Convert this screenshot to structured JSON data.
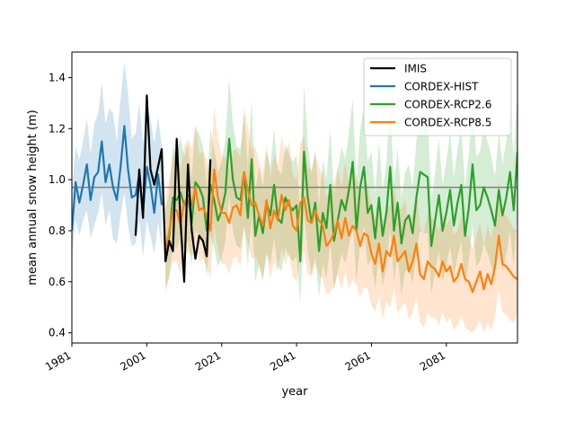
{
  "chart_data": {
    "type": "line",
    "title": "",
    "xlabel": "year",
    "ylabel": "mean annual snow height (m)",
    "xlim": [
      1981,
      2100
    ],
    "ylim": [
      0.36,
      1.5
    ],
    "x_ticks": [
      1981,
      2001,
      2021,
      2041,
      2061,
      2081
    ],
    "x_tick_labels": [
      "1981",
      "2001",
      "2021",
      "2041",
      "2061",
      "2081"
    ],
    "y_ticks": [
      0.4,
      0.6,
      0.8,
      1.0,
      1.2,
      1.4
    ],
    "y_tick_labels": [
      "0.4",
      "0.6",
      "0.8",
      "1.0",
      "1.2",
      "1.4"
    ],
    "grid": false,
    "legend_position": "top-right",
    "reference_line": {
      "y": 0.97,
      "color": "#808080"
    },
    "series": [
      {
        "name": "IMIS",
        "color": "#000000",
        "x": [
          1998,
          1999,
          2000,
          2001,
          2002,
          2003,
          2004,
          2005,
          2006,
          2007,
          2008,
          2009,
          2010,
          2011,
          2012,
          2013,
          2014,
          2015,
          2016,
          2017,
          2018
        ],
        "values": [
          0.78,
          1.04,
          0.85,
          1.33,
          1.04,
          0.98,
          1.05,
          1.12,
          0.68,
          0.76,
          0.72,
          1.16,
          0.84,
          0.6,
          1.06,
          0.8,
          0.69,
          0.78,
          0.76,
          0.7,
          1.08
        ]
      },
      {
        "name": "CORDEX-HIST",
        "color": "#1f77b4",
        "band_color": "#1f77b4",
        "x": [
          1981,
          1982,
          1983,
          1984,
          1985,
          1986,
          1987,
          1988,
          1989,
          1990,
          1991,
          1992,
          1993,
          1994,
          1995,
          1996,
          1997,
          1998,
          1999,
          2000,
          2001,
          2002,
          2003,
          2004,
          2005
        ],
        "values": [
          0.8,
          0.99,
          0.91,
          0.98,
          1.06,
          0.92,
          1.01,
          1.03,
          1.15,
          0.99,
          1.06,
          0.97,
          0.92,
          1.05,
          1.21,
          1.04,
          0.93,
          0.94,
          1.02,
          0.87,
          1.05,
          0.98,
          0.87,
          1.02,
          0.9
        ],
        "lower": [
          0.7,
          0.84,
          0.78,
          0.84,
          0.88,
          0.77,
          0.82,
          0.87,
          0.95,
          0.82,
          0.88,
          0.77,
          0.75,
          0.86,
          0.95,
          0.82,
          0.74,
          0.75,
          0.84,
          0.7,
          0.84,
          0.78,
          0.71,
          0.83,
          0.74
        ],
        "upper": [
          0.95,
          1.13,
          1.08,
          1.15,
          1.24,
          1.1,
          1.22,
          1.26,
          1.38,
          1.22,
          1.28,
          1.26,
          1.15,
          1.32,
          1.46,
          1.34,
          1.16,
          1.18,
          1.3,
          1.14,
          1.28,
          1.24,
          1.14,
          1.25,
          1.14
        ]
      },
      {
        "name": "CORDEX-RCP2.6",
        "color": "#2ca02c",
        "band_color": "#2ca02c",
        "x": [
          2006,
          2007,
          2008,
          2009,
          2010,
          2011,
          2012,
          2013,
          2014,
          2015,
          2016,
          2017,
          2018,
          2019,
          2020,
          2021,
          2022,
          2023,
          2024,
          2025,
          2026,
          2027,
          2028,
          2029,
          2030,
          2031,
          2032,
          2033,
          2034,
          2035,
          2036,
          2037,
          2038,
          2039,
          2040,
          2041,
          2042,
          2043,
          2044,
          2045,
          2046,
          2047,
          2048,
          2049,
          2050,
          2051,
          2052,
          2053,
          2054,
          2055,
          2056,
          2057,
          2058,
          2059,
          2060,
          2061,
          2062,
          2063,
          2064,
          2065,
          2066,
          2067,
          2068,
          2069,
          2070,
          2071,
          2072,
          2073,
          2074,
          2075,
          2076,
          2077,
          2078,
          2079,
          2080,
          2081,
          2082,
          2083,
          2084,
          2085,
          2086,
          2087,
          2088,
          2089,
          2090,
          2091,
          2092,
          2093,
          2094,
          2095,
          2096,
          2097,
          2098,
          2099,
          2100
        ],
        "values": [
          0.7,
          0.78,
          0.93,
          0.92,
          0.95,
          0.9,
          0.94,
          0.83,
          0.99,
          0.97,
          0.93,
          0.8,
          0.98,
          0.92,
          0.84,
          0.88,
          0.95,
          1.16,
          1.0,
          0.93,
          0.92,
          1.03,
          0.85,
          1.08,
          0.78,
          0.86,
          0.79,
          0.91,
          0.86,
          0.98,
          0.85,
          0.83,
          0.93,
          0.9,
          0.88,
          0.9,
          0.68,
          1.11,
          0.93,
          0.83,
          0.91,
          0.72,
          0.87,
          0.81,
          0.98,
          0.76,
          0.84,
          0.92,
          0.88,
          0.96,
          1.07,
          0.8,
          0.97,
          1.05,
          0.87,
          0.9,
          0.77,
          0.93,
          0.78,
          0.87,
          1.05,
          0.8,
          0.91,
          0.75,
          0.84,
          0.86,
          0.79,
          0.93,
          1.03,
          1.02,
          1.01,
          0.74,
          0.84,
          0.94,
          0.8,
          0.87,
          0.96,
          0.82,
          0.91,
          0.98,
          0.78,
          0.89,
          1.06,
          0.88,
          0.9,
          0.97,
          0.93,
          0.88,
          0.82,
          0.96,
          0.86,
          0.93,
          1.03,
          0.88,
          1.11
        ],
        "lower": [
          0.58,
          0.62,
          0.75,
          0.73,
          0.77,
          0.72,
          0.76,
          0.66,
          0.8,
          0.78,
          0.74,
          0.62,
          0.78,
          0.73,
          0.66,
          0.69,
          0.76,
          0.94,
          0.8,
          0.74,
          0.73,
          0.82,
          0.66,
          0.86,
          0.6,
          0.67,
          0.6,
          0.71,
          0.67,
          0.77,
          0.66,
          0.64,
          0.73,
          0.7,
          0.68,
          0.7,
          0.51,
          0.87,
          0.72,
          0.63,
          0.7,
          0.54,
          0.67,
          0.61,
          0.76,
          0.57,
          0.64,
          0.71,
          0.67,
          0.74,
          0.84,
          0.6,
          0.75,
          0.82,
          0.66,
          0.69,
          0.57,
          0.71,
          0.58,
          0.66,
          0.81,
          0.6,
          0.7,
          0.55,
          0.64,
          0.65,
          0.59,
          0.71,
          0.8,
          0.79,
          0.79,
          0.55,
          0.64,
          0.72,
          0.6,
          0.66,
          0.74,
          0.62,
          0.7,
          0.76,
          0.58,
          0.68,
          0.82,
          0.66,
          0.68,
          0.75,
          0.71,
          0.66,
          0.61,
          0.74,
          0.64,
          0.71,
          0.8,
          0.66,
          0.87
        ],
        "upper": [
          0.88,
          0.95,
          1.13,
          1.1,
          1.17,
          1.09,
          1.14,
          1.01,
          1.21,
          1.18,
          1.13,
          0.98,
          1.2,
          1.12,
          1.03,
          1.07,
          1.16,
          1.4,
          1.22,
          1.13,
          1.12,
          1.26,
          1.04,
          1.31,
          0.96,
          1.05,
          0.97,
          1.11,
          1.05,
          1.2,
          1.04,
          1.02,
          1.14,
          1.1,
          1.07,
          1.1,
          0.85,
          1.37,
          1.14,
          1.02,
          1.12,
          0.9,
          1.08,
          1.0,
          1.2,
          0.94,
          1.04,
          1.13,
          1.08,
          1.18,
          1.32,
          0.99,
          1.19,
          1.29,
          1.07,
          1.11,
          0.95,
          1.15,
          0.96,
          1.07,
          1.3,
          0.98,
          1.12,
          0.93,
          1.03,
          1.06,
          0.97,
          1.15,
          1.27,
          1.26,
          1.25,
          0.92,
          1.03,
          1.16,
          0.98,
          1.07,
          1.19,
          1.01,
          1.12,
          1.21,
          0.97,
          1.1,
          1.31,
          1.09,
          1.11,
          1.2,
          1.15,
          1.09,
          1.01,
          1.19,
          1.06,
          1.15,
          1.27,
          1.09,
          1.36
        ]
      },
      {
        "name": "CORDEX-RCP8.5",
        "color": "#ff7f0e",
        "band_color": "#ff7f0e",
        "x": [
          2006,
          2007,
          2008,
          2009,
          2010,
          2011,
          2012,
          2013,
          2014,
          2015,
          2016,
          2017,
          2018,
          2019,
          2020,
          2021,
          2022,
          2023,
          2024,
          2025,
          2026,
          2027,
          2028,
          2029,
          2030,
          2031,
          2032,
          2033,
          2034,
          2035,
          2036,
          2037,
          2038,
          2039,
          2040,
          2041,
          2042,
          2043,
          2044,
          2045,
          2046,
          2047,
          2048,
          2049,
          2050,
          2051,
          2052,
          2053,
          2054,
          2055,
          2056,
          2057,
          2058,
          2059,
          2060,
          2061,
          2062,
          2063,
          2064,
          2065,
          2066,
          2067,
          2068,
          2069,
          2070,
          2071,
          2072,
          2073,
          2074,
          2075,
          2076,
          2077,
          2078,
          2079,
          2080,
          2081,
          2082,
          2083,
          2084,
          2085,
          2086,
          2087,
          2088,
          2089,
          2090,
          2091,
          2092,
          2093,
          2094,
          2095,
          2096,
          2097,
          2098,
          2099,
          2100
        ],
        "values": [
          0.72,
          0.8,
          0.88,
          0.88,
          0.82,
          0.91,
          0.93,
          0.9,
          0.97,
          0.88,
          0.89,
          0.86,
          0.8,
          1.04,
          0.93,
          0.87,
          0.87,
          0.83,
          0.89,
          0.9,
          0.86,
          1.03,
          0.96,
          0.9,
          0.91,
          0.86,
          0.82,
          0.92,
          0.81,
          0.88,
          0.84,
          0.94,
          0.88,
          0.92,
          0.82,
          0.8,
          0.91,
          0.93,
          0.84,
          0.83,
          0.88,
          0.84,
          0.82,
          0.74,
          0.76,
          0.79,
          0.84,
          0.77,
          0.85,
          0.78,
          0.82,
          0.8,
          0.74,
          0.79,
          0.78,
          0.71,
          0.67,
          0.75,
          0.64,
          0.72,
          0.7,
          0.78,
          0.68,
          0.7,
          0.72,
          0.64,
          0.68,
          0.75,
          0.63,
          0.61,
          0.68,
          0.66,
          0.65,
          0.62,
          0.68,
          0.64,
          0.66,
          0.6,
          0.62,
          0.67,
          0.61,
          0.6,
          0.56,
          0.6,
          0.64,
          0.57,
          0.63,
          0.59,
          0.66,
          0.78,
          0.67,
          0.66,
          0.64,
          0.62,
          0.61
        ],
        "lower": [
          0.55,
          0.62,
          0.68,
          0.68,
          0.63,
          0.71,
          0.72,
          0.7,
          0.76,
          0.68,
          0.69,
          0.66,
          0.61,
          0.82,
          0.72,
          0.67,
          0.67,
          0.63,
          0.69,
          0.7,
          0.66,
          0.81,
          0.75,
          0.69,
          0.7,
          0.66,
          0.62,
          0.71,
          0.61,
          0.68,
          0.64,
          0.73,
          0.67,
          0.71,
          0.62,
          0.6,
          0.7,
          0.72,
          0.63,
          0.62,
          0.67,
          0.63,
          0.61,
          0.55,
          0.56,
          0.58,
          0.63,
          0.57,
          0.64,
          0.57,
          0.61,
          0.59,
          0.54,
          0.58,
          0.57,
          0.51,
          0.48,
          0.55,
          0.45,
          0.52,
          0.5,
          0.57,
          0.48,
          0.5,
          0.52,
          0.45,
          0.48,
          0.54,
          0.44,
          0.42,
          0.48,
          0.46,
          0.46,
          0.43,
          0.48,
          0.44,
          0.46,
          0.41,
          0.43,
          0.47,
          0.42,
          0.41,
          0.4,
          0.42,
          0.45,
          0.4,
          0.44,
          0.41,
          0.47,
          0.57,
          0.48,
          0.47,
          0.45,
          0.44,
          0.48
        ],
        "upper": [
          0.92,
          1.0,
          1.1,
          1.1,
          1.03,
          1.13,
          1.16,
          1.12,
          1.21,
          1.1,
          1.11,
          1.08,
          1.0,
          1.29,
          1.16,
          1.09,
          1.09,
          1.04,
          1.11,
          1.12,
          1.08,
          1.28,
          1.2,
          1.12,
          1.13,
          1.07,
          1.02,
          1.14,
          1.01,
          1.1,
          1.05,
          1.17,
          1.1,
          1.15,
          1.02,
          1.0,
          1.14,
          1.17,
          1.05,
          1.04,
          1.1,
          1.05,
          1.02,
          0.93,
          0.96,
          0.99,
          1.05,
          0.97,
          1.07,
          0.98,
          1.03,
          1.01,
          0.93,
          0.99,
          0.98,
          0.9,
          0.85,
          0.95,
          0.82,
          0.91,
          0.89,
          0.99,
          0.87,
          0.89,
          0.92,
          0.82,
          0.87,
          0.96,
          0.81,
          0.79,
          0.87,
          0.85,
          0.84,
          0.8,
          0.87,
          0.82,
          0.85,
          0.78,
          0.8,
          0.86,
          0.79,
          0.78,
          0.73,
          0.78,
          0.83,
          0.74,
          0.82,
          0.77,
          0.86,
          1.0,
          0.87,
          0.86,
          0.83,
          0.81,
          0.8
        ]
      }
    ]
  }
}
